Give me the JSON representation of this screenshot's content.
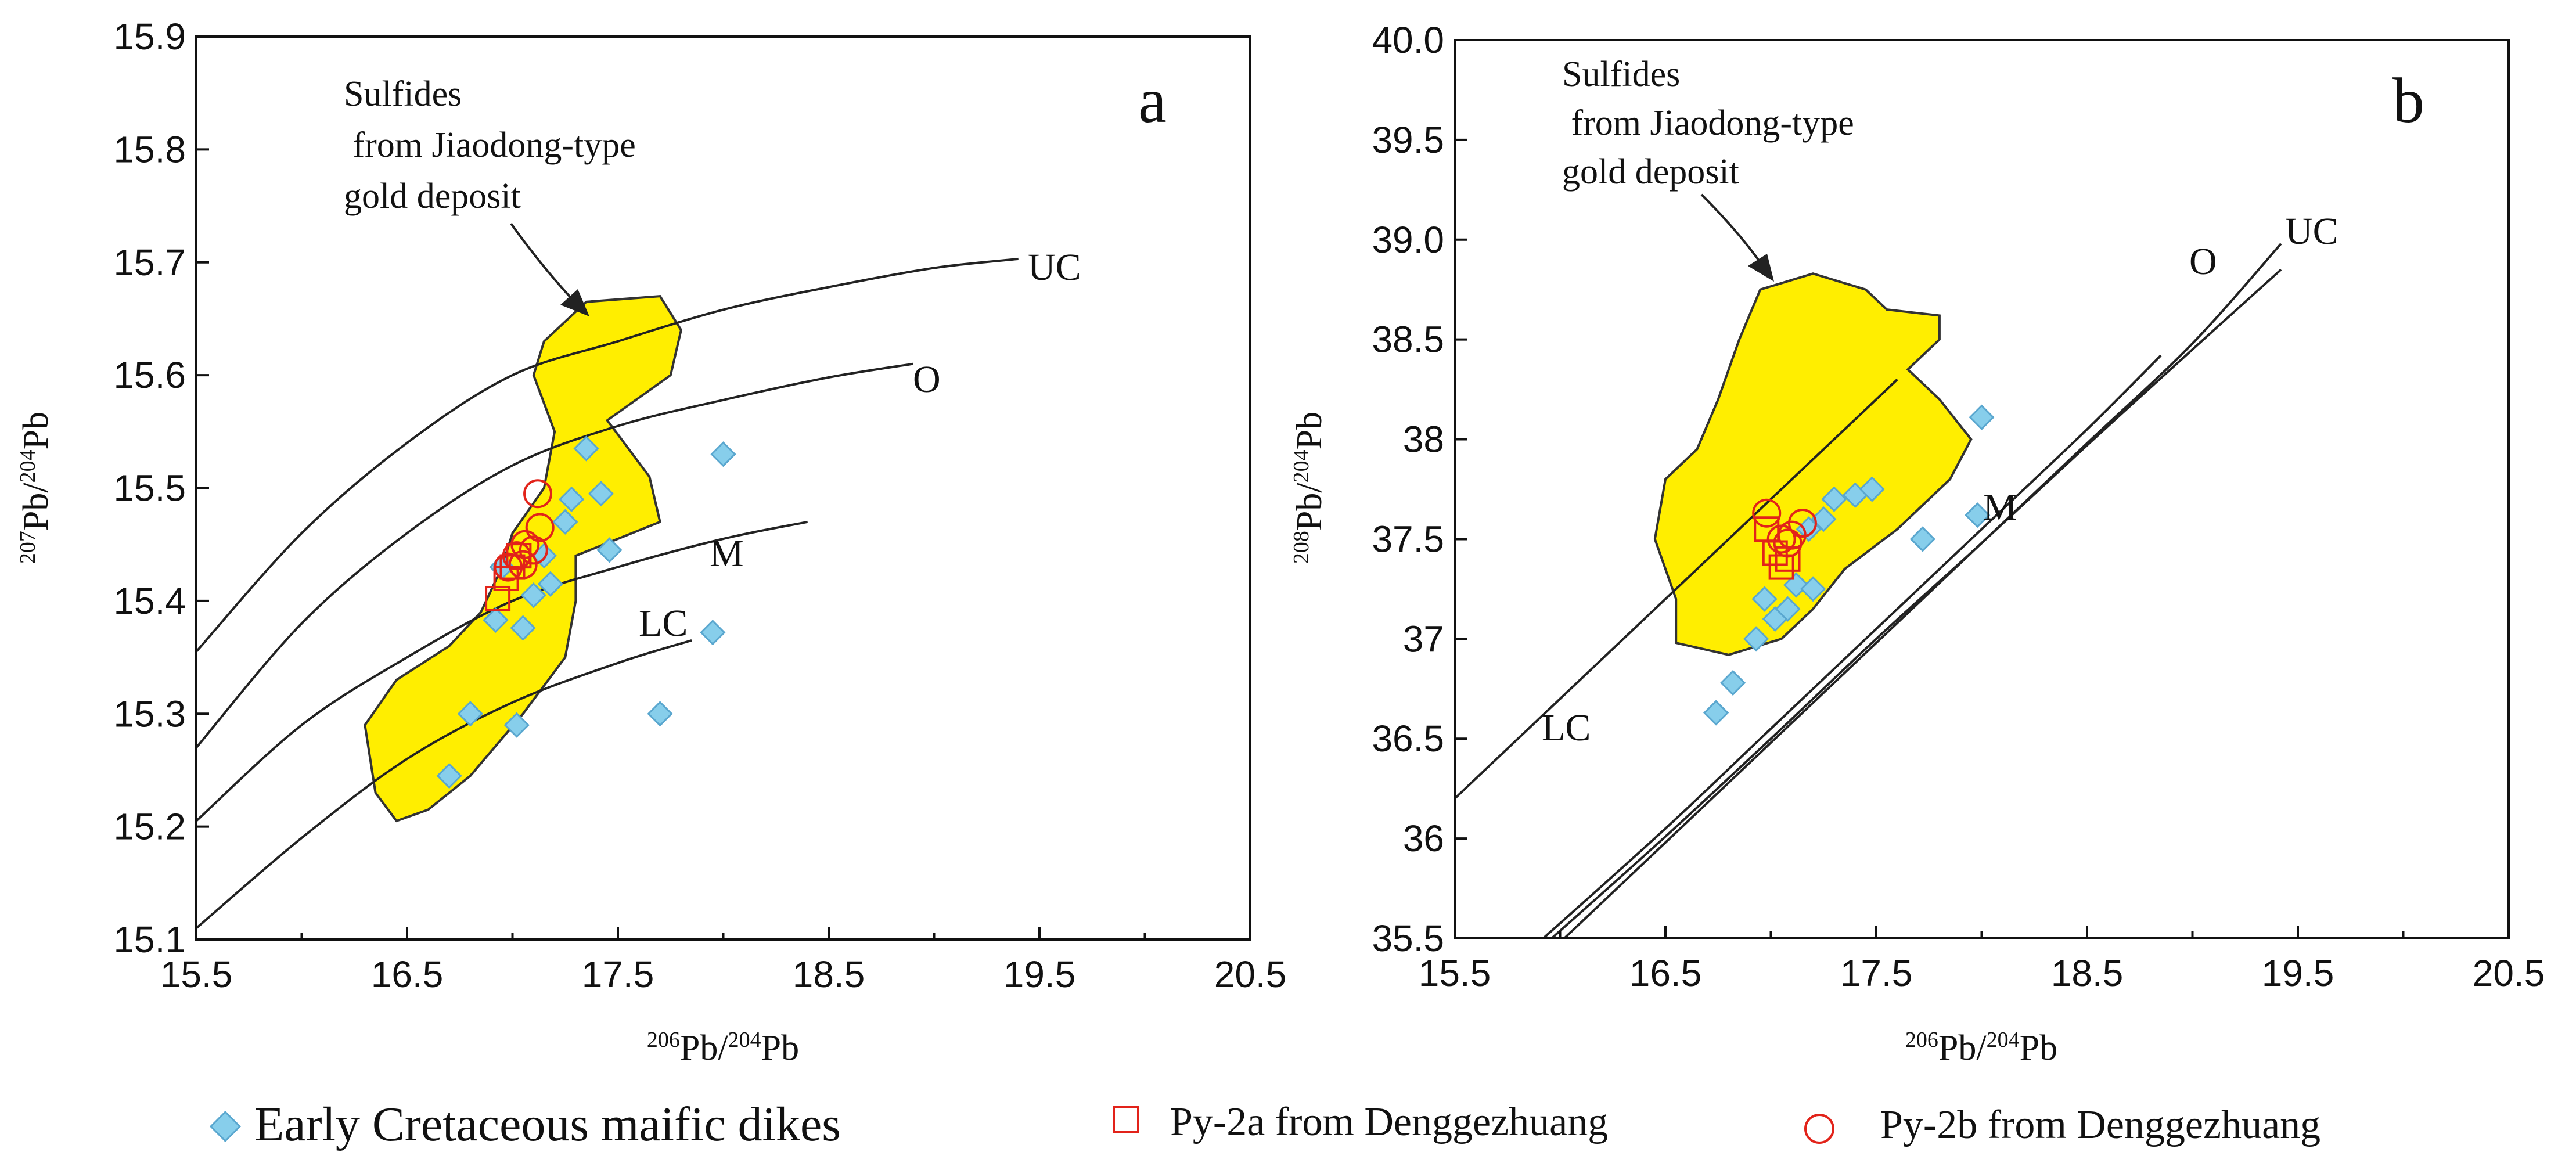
{
  "colors": {
    "field_fill": "#ffee00",
    "diamond_fill": "#87ceeb",
    "diamond_stroke": "#5aa7cf",
    "marker_red": "#e2231a",
    "line": "#222222"
  },
  "legend": {
    "items": [
      {
        "symbol": "diamond",
        "label": "Early Cretaceous maific dikes"
      },
      {
        "symbol": "square",
        "label": "Py-2a from Denggezhuang"
      },
      {
        "symbol": "circle",
        "label": "Py-2b from Denggezhuang"
      }
    ]
  },
  "chart_data": [
    {
      "type": "scatter",
      "panel": "a",
      "xlabel": {
        "sup": "206",
        "main": "Pb/",
        "sup2": "204",
        "main2": "Pb"
      },
      "ylabel": {
        "sup": "207",
        "main": "Pb/",
        "sup2": "204",
        "main2": "Pb"
      },
      "xlim": [
        15.5,
        20.5
      ],
      "ylim": [
        15.1,
        15.9
      ],
      "xticks": [
        "15.5",
        "16.5",
        "17.5",
        "18.5",
        "19.5",
        "20.5"
      ],
      "yticks": [
        "15.1",
        "15.2",
        "15.3",
        "15.4",
        "15.5",
        "15.6",
        "15.7",
        "15.8",
        "15.9"
      ],
      "field": {
        "label_lines": [
          "Sulfides",
          " from Jiaodong-type",
          "gold deposit"
        ],
        "outline": [
          [
            16.45,
            15.205
          ],
          [
            16.35,
            15.23
          ],
          [
            16.3,
            15.29
          ],
          [
            16.45,
            15.33
          ],
          [
            16.7,
            15.36
          ],
          [
            16.85,
            15.39
          ],
          [
            16.95,
            15.43
          ],
          [
            17.0,
            15.46
          ],
          [
            17.15,
            15.5
          ],
          [
            17.2,
            15.55
          ],
          [
            17.1,
            15.6
          ],
          [
            17.15,
            15.63
          ],
          [
            17.35,
            15.665
          ],
          [
            17.7,
            15.67
          ],
          [
            17.8,
            15.64
          ],
          [
            17.75,
            15.6
          ],
          [
            17.45,
            15.56
          ],
          [
            17.65,
            15.51
          ],
          [
            17.7,
            15.47
          ],
          [
            17.5,
            15.455
          ],
          [
            17.3,
            15.44
          ],
          [
            17.3,
            15.4
          ],
          [
            17.25,
            15.35
          ],
          [
            17.05,
            15.3
          ],
          [
            16.8,
            15.245
          ],
          [
            16.6,
            15.215
          ],
          [
            16.45,
            15.205
          ]
        ]
      },
      "curves": [
        {
          "name": "UC",
          "points": [
            [
              15.5,
              15.355
            ],
            [
              16.0,
              15.46
            ],
            [
              16.5,
              15.54
            ],
            [
              17.0,
              15.6
            ],
            [
              17.5,
              15.63
            ],
            [
              18.0,
              15.658
            ],
            [
              18.5,
              15.678
            ],
            [
              19.0,
              15.695
            ],
            [
              19.4,
              15.703
            ]
          ]
        },
        {
          "name": "O",
          "points": [
            [
              15.5,
              15.27
            ],
            [
              16.0,
              15.38
            ],
            [
              16.5,
              15.46
            ],
            [
              17.0,
              15.52
            ],
            [
              17.5,
              15.555
            ],
            [
              18.0,
              15.578
            ],
            [
              18.5,
              15.598
            ],
            [
              18.9,
              15.61
            ]
          ]
        },
        {
          "name": "M",
          "points": [
            [
              15.5,
              15.205
            ],
            [
              16.0,
              15.29
            ],
            [
              16.5,
              15.35
            ],
            [
              17.0,
              15.4
            ],
            [
              17.5,
              15.43
            ],
            [
              18.0,
              15.455
            ],
            [
              18.4,
              15.47
            ]
          ]
        },
        {
          "name": "LC",
          "points": [
            [
              15.5,
              15.11
            ],
            [
              16.0,
              15.19
            ],
            [
              16.5,
              15.26
            ],
            [
              17.0,
              15.31
            ],
            [
              17.5,
              15.345
            ],
            [
              17.85,
              15.365
            ]
          ]
        }
      ],
      "series": [
        {
          "name": "Early Cretaceous maific dikes",
          "marker": "diamond",
          "points": [
            [
              16.7,
              15.245
            ],
            [
              16.8,
              15.3
            ],
            [
              16.92,
              15.383
            ],
            [
              16.95,
              15.43
            ],
            [
              17.02,
              15.29
            ],
            [
              17.05,
              15.376
            ],
            [
              17.1,
              15.405
            ],
            [
              17.15,
              15.44
            ],
            [
              17.18,
              15.415
            ],
            [
              17.25,
              15.47
            ],
            [
              17.28,
              15.49
            ],
            [
              17.35,
              15.535
            ],
            [
              17.42,
              15.495
            ],
            [
              17.46,
              15.445
            ],
            [
              17.7,
              15.3
            ],
            [
              17.95,
              15.372
            ],
            [
              18.0,
              15.53
            ]
          ]
        },
        {
          "name": "Py-2a from Denggezhuang",
          "marker": "square",
          "points": [
            [
              16.93,
              15.402
            ],
            [
              16.97,
              15.42
            ],
            [
              17.0,
              15.43
            ],
            [
              17.03,
              15.44
            ]
          ]
        },
        {
          "name": "Py-2b from Denggezhuang",
          "marker": "circle",
          "points": [
            [
              16.98,
              15.43
            ],
            [
              17.02,
              15.44
            ],
            [
              17.06,
              15.45
            ],
            [
              17.1,
              15.445
            ],
            [
              17.13,
              15.465
            ],
            [
              17.12,
              15.495
            ],
            [
              17.05,
              15.432
            ]
          ]
        }
      ]
    },
    {
      "type": "scatter",
      "panel": "b",
      "xlabel": {
        "sup": "206",
        "main": "Pb/",
        "sup2": "204",
        "main2": "Pb"
      },
      "ylabel": {
        "sup": "208",
        "main": "Pb/",
        "sup2": "204",
        "main2": "Pb"
      },
      "xlim": [
        15.5,
        20.5
      ],
      "ylim": [
        35.5,
        40.0
      ],
      "xticks": [
        "15.5",
        "16.5",
        "17.5",
        "18.5",
        "19.5",
        "20.5"
      ],
      "yticks": [
        "35.5",
        "36",
        "36.5",
        "37",
        "37.5",
        "38",
        "38.5",
        "39.0",
        "39.5",
        "40.0"
      ],
      "field": {
        "label_lines": [
          "Sulfides",
          " from Jiaodong-type",
          "gold deposit"
        ],
        "outline": [
          [
            17.2,
            38.83
          ],
          [
            16.95,
            38.75
          ],
          [
            16.85,
            38.5
          ],
          [
            16.75,
            38.2
          ],
          [
            16.65,
            37.95
          ],
          [
            16.5,
            37.8
          ],
          [
            16.45,
            37.5
          ],
          [
            16.55,
            37.2
          ],
          [
            16.55,
            36.98
          ],
          [
            16.8,
            36.92
          ],
          [
            17.05,
            37.0
          ],
          [
            17.2,
            37.15
          ],
          [
            17.35,
            37.35
          ],
          [
            17.6,
            37.55
          ],
          [
            17.85,
            37.8
          ],
          [
            17.95,
            38.0
          ],
          [
            17.8,
            38.2
          ],
          [
            17.65,
            38.35
          ],
          [
            17.8,
            38.5
          ],
          [
            17.8,
            38.62
          ],
          [
            17.55,
            38.65
          ],
          [
            17.45,
            38.75
          ],
          [
            17.2,
            38.83
          ]
        ]
      },
      "curves": [
        {
          "name": "LC",
          "points": [
            [
              15.5,
              36.2
            ],
            [
              16.0,
              36.7
            ],
            [
              16.5,
              37.2
            ],
            [
              17.0,
              37.7
            ],
            [
              17.5,
              38.2
            ],
            [
              17.6,
              38.3
            ]
          ]
        },
        {
          "name": "O",
          "points": [
            [
              15.92,
              35.5
            ],
            [
              16.5,
              36.05
            ],
            [
              17.0,
              36.55
            ],
            [
              17.5,
              37.05
            ],
            [
              18.0,
              37.55
            ],
            [
              18.5,
              38.05
            ],
            [
              18.85,
              38.42
            ]
          ]
        },
        {
          "name": "UC",
          "points": [
            [
              16.02,
              35.5
            ],
            [
              16.5,
              35.98
            ],
            [
              17.0,
              36.48
            ],
            [
              17.5,
              36.98
            ],
            [
              18.0,
              37.48
            ],
            [
              18.5,
              37.98
            ],
            [
              19.0,
              38.48
            ],
            [
              19.42,
              38.98
            ]
          ]
        },
        {
          "name": "M",
          "points": [
            [
              15.96,
              35.5
            ],
            [
              16.5,
              36.01
            ],
            [
              17.0,
              36.5
            ],
            [
              17.5,
              37.0
            ],
            [
              18.0,
              37.48
            ],
            [
              18.5,
              37.97
            ],
            [
              19.0,
              38.45
            ],
            [
              19.42,
              38.85
            ]
          ]
        }
      ],
      "series": [
        {
          "name": "Early Cretaceous maific dikes",
          "marker": "diamond",
          "points": [
            [
              16.74,
              36.63
            ],
            [
              16.82,
              36.78
            ],
            [
              16.93,
              37.0
            ],
            [
              16.97,
              37.2
            ],
            [
              17.02,
              37.1
            ],
            [
              17.08,
              37.15
            ],
            [
              17.12,
              37.27
            ],
            [
              17.2,
              37.25
            ],
            [
              17.3,
              37.7
            ],
            [
              17.4,
              37.72
            ],
            [
              17.48,
              37.75
            ],
            [
              17.72,
              37.5
            ],
            [
              17.98,
              37.62
            ],
            [
              18.0,
              38.11
            ],
            [
              17.25,
              37.6
            ],
            [
              17.18,
              37.55
            ]
          ]
        },
        {
          "name": "Py-2a from Denggezhuang",
          "marker": "square",
          "points": [
            [
              16.98,
              37.55
            ],
            [
              17.02,
              37.43
            ],
            [
              17.05,
              37.36
            ],
            [
              17.08,
              37.4
            ]
          ]
        },
        {
          "name": "Py-2b from Denggezhuang",
          "marker": "circle",
          "points": [
            [
              16.98,
              37.63
            ],
            [
              17.05,
              37.5
            ],
            [
              17.1,
              37.52
            ],
            [
              17.15,
              37.58
            ],
            [
              17.08,
              37.48
            ]
          ]
        }
      ]
    }
  ]
}
